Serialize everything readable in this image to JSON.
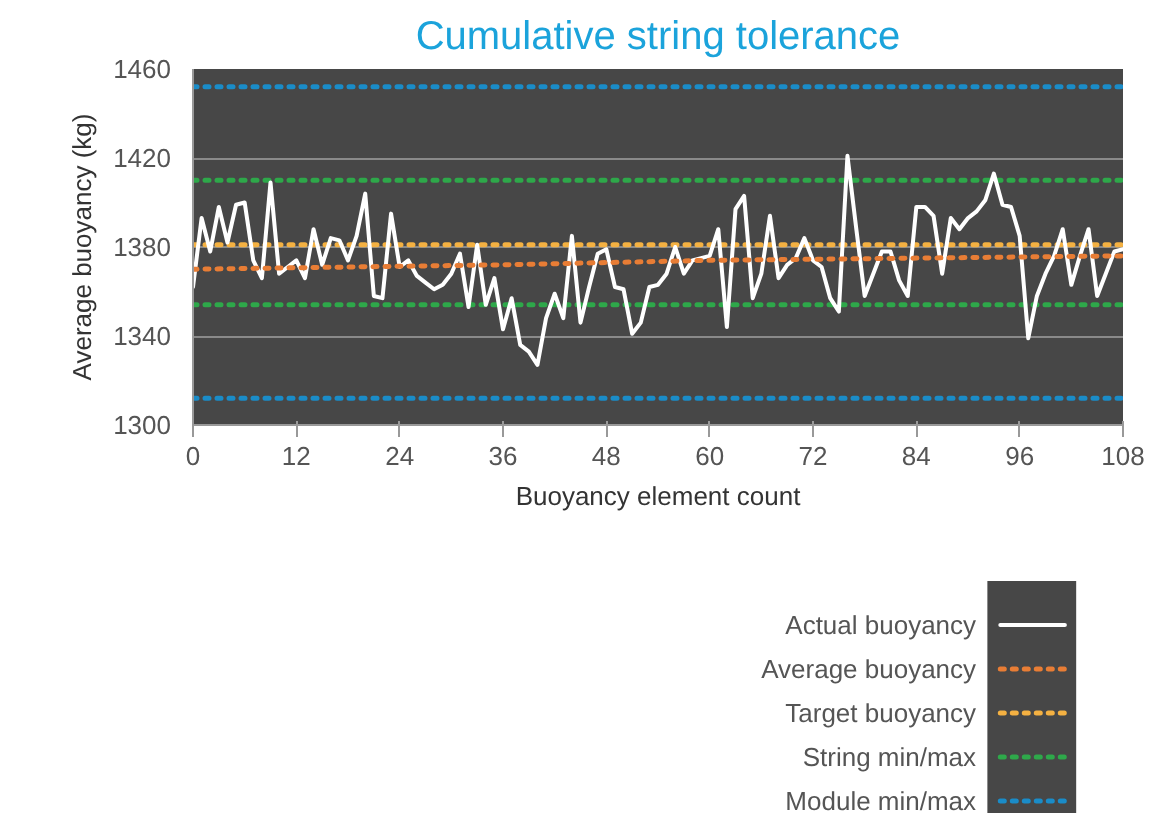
{
  "chart_data": {
    "type": "line",
    "title": "Cumulative string tolerance",
    "xlabel": "Buoyancy element count",
    "ylabel": "Average buoyancy (kg)",
    "xlim": [
      0,
      108
    ],
    "xticks": [
      0,
      12,
      24,
      36,
      48,
      60,
      72,
      84,
      96,
      108
    ],
    "ylim": [
      1300,
      1460
    ],
    "yticks": [
      1300,
      1340,
      1380,
      1420,
      1460
    ],
    "grid": "y",
    "legend": "bottom right",
    "marker": "none",
    "series": [
      {
        "name": "Actual buoyancy",
        "color": "#ffffff",
        "line_style": "solid",
        "x": [
          0,
          1,
          2,
          3,
          4,
          5,
          6,
          7,
          8,
          9,
          10,
          11,
          12,
          13,
          14,
          15,
          16,
          17,
          18,
          19,
          20,
          21,
          22,
          23,
          24,
          25,
          26,
          27,
          28,
          29,
          30,
          31,
          32,
          33,
          34,
          35,
          36,
          37,
          38,
          39,
          40,
          41,
          42,
          43,
          44,
          45,
          46,
          47,
          48,
          49,
          50,
          51,
          52,
          53,
          54,
          55,
          56,
          57,
          58,
          59,
          60,
          61,
          62,
          63,
          64,
          65,
          66,
          67,
          68,
          69,
          70,
          71,
          72,
          73,
          74,
          75,
          76,
          77,
          78,
          79,
          80,
          81,
          82,
          83,
          84,
          85,
          86,
          87,
          88,
          89,
          90,
          91,
          92,
          93,
          94,
          95,
          96,
          97,
          98,
          99,
          100,
          101,
          102,
          103,
          104,
          105,
          106,
          107,
          108
        ],
        "values": [
          1362,
          1393,
          1378,
          1398,
          1382,
          1399,
          1400,
          1374,
          1366,
          1409,
          1368,
          1371,
          1374,
          1366,
          1388,
          1372,
          1384,
          1383,
          1374,
          1385,
          1404,
          1358,
          1357,
          1395,
          1371,
          1374,
          1367,
          1364,
          1361,
          1363,
          1368,
          1377,
          1353,
          1381,
          1354,
          1366,
          1343,
          1357,
          1336,
          1333,
          1327,
          1348,
          1359,
          1348,
          1385,
          1346,
          1362,
          1377,
          1379,
          1362,
          1361,
          1341,
          1346,
          1362,
          1363,
          1368,
          1380,
          1368,
          1374,
          1375,
          1376,
          1388,
          1344,
          1397,
          1403,
          1357,
          1368,
          1394,
          1366,
          1372,
          1375,
          1384,
          1374,
          1371,
          1357,
          1351,
          1421,
          1389,
          1358,
          1368,
          1378,
          1378,
          1365,
          1358,
          1398,
          1398,
          1394,
          1368,
          1393,
          1388,
          1393,
          1396,
          1401,
          1413,
          1399,
          1398,
          1385,
          1339,
          1358,
          1368,
          1376,
          1388,
          1363,
          1376,
          1388,
          1358,
          1368,
          1378,
          1379
        ]
      },
      {
        "name": "Average buoyancy",
        "color": "#e87d35",
        "line_style": "dotted",
        "x": [
          0,
          36,
          60,
          108
        ],
        "values": [
          1370,
          1372,
          1374,
          1376
        ]
      }
    ],
    "ref_lines": [
      {
        "axis": "y",
        "value": 1381,
        "label": "Target buoyancy",
        "color": "#f4b142",
        "line_style": "dotted"
      },
      {
        "axis": "y",
        "value": 1410,
        "label": "String min/max",
        "color": "#2ea84a",
        "line_style": "dotted"
      },
      {
        "axis": "y",
        "value": 1354,
        "color": "#2ea84a",
        "line_style": "dotted"
      },
      {
        "axis": "y",
        "value": 1452,
        "label": "Module min/max",
        "color": "#1a8cc8",
        "line_style": "dotted"
      },
      {
        "axis": "y",
        "value": 1312,
        "color": "#1a8cc8",
        "line_style": "dotted"
      }
    ]
  }
}
